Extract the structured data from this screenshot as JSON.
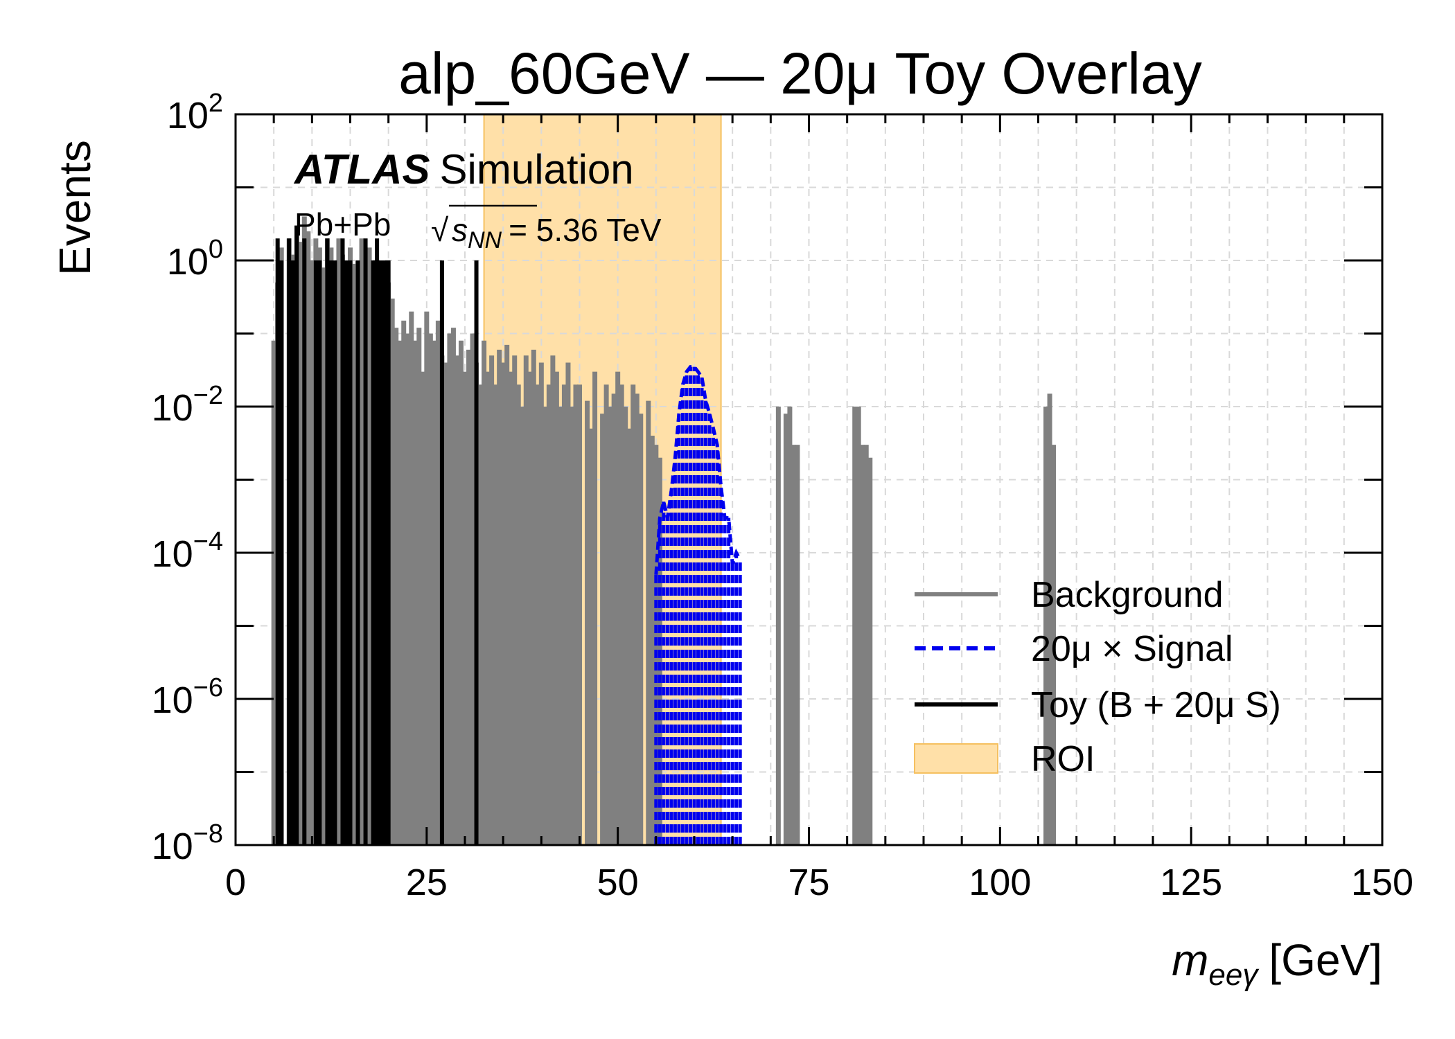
{
  "chart_data": {
    "type": "bar",
    "title": "alp_60GeV — 20μ Toy Overlay",
    "xlabel": "m",
    "xlabel_sub": "eeγ",
    "xlabel_unit": "[GeV]",
    "ylabel": "Events",
    "xlim": [
      0,
      150
    ],
    "ylim": [
      1e-08,
      100
    ],
    "yscale": "log",
    "grid": true,
    "x_ticks": [
      "0",
      "25",
      "50",
      "75",
      "100",
      "125",
      "150"
    ],
    "y_ticks": [
      {
        "base": "10",
        "exp": "2"
      },
      {
        "base": "10",
        "exp": "0"
      },
      {
        "base": "10",
        "exp": "−2"
      },
      {
        "base": "10",
        "exp": "−4"
      },
      {
        "base": "10",
        "exp": "−6"
      },
      {
        "base": "10",
        "exp": "−8"
      }
    ],
    "annotation": {
      "experiment": "ATLAS",
      "label": "Simulation",
      "system": "Pb+Pb",
      "energy_var": "s",
      "energy_sub": "NN",
      "energy_value": "= 5.36 TeV"
    },
    "roi": {
      "x": [
        32.5,
        63.5
      ],
      "color": "#ffc966"
    },
    "legend_position": "lower-right",
    "legend": [
      "Background",
      "20μ × Signal",
      "Toy (B + 20μ S)",
      "ROI"
    ],
    "colors": {
      "background": "#808080",
      "signal": "#0000ee",
      "toy": "#000000",
      "roi": "#ffe0a8"
    },
    "background": {
      "name": "Background",
      "x": [
        5,
        5.5,
        6,
        7,
        7.5,
        8,
        8.5,
        9,
        9.5,
        10,
        10.5,
        11,
        11.5,
        12,
        12.5,
        13,
        13.5,
        14,
        14.5,
        15,
        15.5,
        16,
        16.5,
        17,
        17.5,
        18,
        18.5,
        19,
        19.5,
        20,
        20.5,
        21,
        21.5,
        22,
        22.5,
        23,
        23.5,
        24,
        24.5,
        25,
        25.5,
        26,
        26.5,
        27,
        27.5,
        28,
        28.5,
        29,
        29.5,
        30,
        30.5,
        31,
        31.5,
        32,
        32.5,
        33,
        33.5,
        34,
        34.5,
        35,
        35.5,
        36,
        36.5,
        37,
        37.5,
        38,
        38.5,
        39,
        39.5,
        40,
        40.5,
        41,
        41.5,
        42,
        42.5,
        43,
        43.5,
        44,
        44.5,
        45,
        46,
        46.5,
        47,
        48,
        48.5,
        49,
        49.5,
        50,
        50.5,
        51,
        51.5,
        52,
        52.5,
        53,
        54,
        54.5,
        55,
        55.5,
        71,
        72,
        72.5,
        73,
        73.5,
        81,
        81.5,
        82,
        82.5,
        83,
        106,
        106.5,
        107
      ],
      "values": [
        0.08,
        0.5,
        1.5,
        2,
        1.2,
        3,
        1.8,
        4,
        2.5,
        1,
        2,
        1.5,
        0.8,
        2,
        1.5,
        1,
        2,
        1.2,
        0.9,
        1.5,
        0.9,
        1,
        2,
        0.8,
        1.5,
        0.6,
        1,
        0.5,
        0.8,
        0.5,
        0.3,
        0.12,
        0.08,
        0.15,
        0.1,
        0.2,
        0.08,
        0.12,
        0.03,
        0.2,
        0.1,
        0.08,
        0.15,
        0.05,
        0.04,
        0.1,
        0.12,
        0.05,
        0.08,
        0.03,
        0.06,
        0.1,
        0.04,
        0.02,
        0.08,
        0.03,
        0.05,
        0.02,
        0.06,
        0.04,
        0.07,
        0.03,
        0.05,
        0.02,
        0.01,
        0.05,
        0.03,
        0.06,
        0.02,
        0.04,
        0.01,
        0.02,
        0.05,
        0.03,
        0.01,
        0.02,
        0.04,
        0.01,
        0.02,
        0.02,
        0.012,
        0.005,
        0.03,
        0.008,
        0.02,
        0.01,
        0.015,
        0.03,
        0.02,
        0.01,
        0.005,
        0.02,
        0.015,
        0.008,
        0.012,
        0.004,
        0.003,
        0.002,
        0.01,
        0.008,
        0.01,
        0.003,
        0.003,
        0.01,
        0.01,
        0.003,
        0.003,
        0.002,
        0.01,
        0.015,
        0.003
      ]
    },
    "toy": {
      "name": "Toy (B + 20μ S)",
      "x": [
        5.5,
        6,
        7,
        7.5,
        8,
        9,
        10.5,
        11,
        12,
        12.5,
        13,
        14,
        14.5,
        15,
        16,
        17,
        18,
        18.5,
        19,
        19.5,
        20,
        27,
        31.5
      ],
      "values": [
        2,
        1,
        2,
        1,
        3,
        2,
        1,
        1,
        2,
        1,
        1,
        2,
        1,
        1,
        1,
        2,
        1,
        2,
        1,
        1,
        1,
        1,
        1
      ]
    },
    "signal": {
      "name": "20μ × Signal",
      "x": [
        55,
        55.5,
        56,
        56.5,
        57,
        57.5,
        58,
        58.5,
        59,
        59.5,
        60,
        60.5,
        61,
        61.5,
        62,
        62.5,
        63,
        63.5,
        64,
        64.5,
        65,
        65.5,
        66
      ],
      "values": [
        5e-05,
        0.0003,
        0.0005,
        0.0003,
        0.0007,
        0.002,
        0.008,
        0.02,
        0.03,
        0.035,
        0.035,
        0.03,
        0.025,
        0.012,
        0.008,
        0.005,
        0.003,
        0.0008,
        0.0003,
        0.0003,
        7e-05,
        0.0001,
        8e-05
      ]
    }
  }
}
